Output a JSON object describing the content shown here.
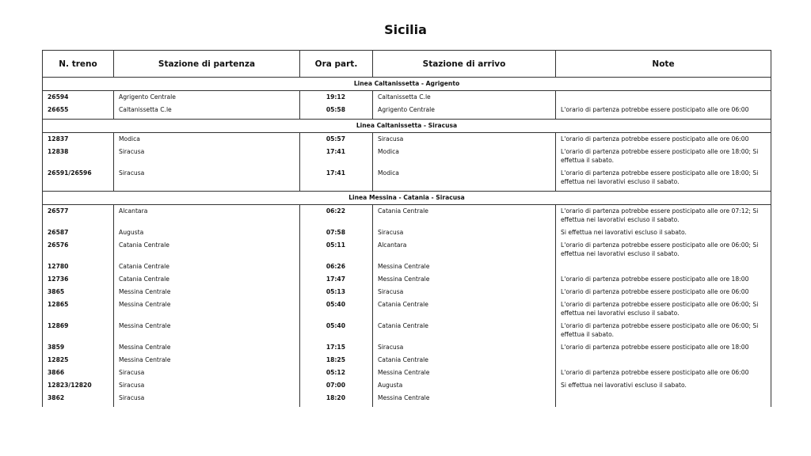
{
  "title": "Sicilia",
  "columns": [
    "N. treno",
    "Stazione di partenza",
    "Ora part.",
    "Stazione di arrivo",
    "Note"
  ],
  "sections": [
    {
      "name": "Linea Caltanissetta - Agrigento",
      "rows": [
        [
          "26594",
          "Agrigento Centrale",
          "19:12",
          "Caltanissetta C.le",
          ""
        ],
        [
          "26655",
          "Caltanissetta C.le",
          "05:58",
          "Agrigento Centrale",
          "L'orario di partenza potrebbe essere posticipato alle ore 06:00"
        ]
      ]
    },
    {
      "name": "Linea Caltanissetta - Siracusa",
      "rows": [
        [
          "12837",
          "Modica",
          "05:57",
          "Siracusa",
          "L'orario di partenza potrebbe essere posticipato alle ore 06:00"
        ],
        [
          "12838",
          "Siracusa",
          "17:41",
          "Modica",
          "L'orario di partenza potrebbe essere posticipato alle ore 18:00; Si effettua il sabato."
        ],
        [
          "26591/26596",
          "Siracusa",
          "17:41",
          "Modica",
          "L'orario di partenza potrebbe essere posticipato alle ore 18:00; Si effettua nei lavorativi escluso il sabato."
        ]
      ]
    },
    {
      "name": "Linea Messina - Catania - Siracusa",
      "rows": [
        [
          "26577",
          "Alcantara",
          "06:22",
          "Catania Centrale",
          "L'orario di partenza potrebbe essere posticipato alle ore 07:12; Si effettua nei lavorativi escluso il sabato."
        ],
        [
          "26587",
          "Augusta",
          "07:58",
          "Siracusa",
          "Si effettua nei lavorativi escluso il sabato."
        ],
        [
          "26576",
          "Catania Centrale",
          "05:11",
          "Alcantara",
          "L'orario di partenza potrebbe essere posticipato alle ore 06:00; Si effettua nei lavorativi escluso il sabato."
        ],
        [
          "12780",
          "Catania Centrale",
          "06:26",
          "Messina Centrale",
          ""
        ],
        [
          "12736",
          "Catania Centrale",
          "17:47",
          "Messina Centrale",
          "L'orario di partenza potrebbe essere posticipato alle ore 18:00"
        ],
        [
          "3865",
          "Messina Centrale",
          "05:13",
          "Siracusa",
          "L'orario di partenza potrebbe essere posticipato alle ore 06:00"
        ],
        [
          "12865",
          "Messina Centrale",
          "05:40",
          "Catania Centrale",
          "L'orario di partenza potrebbe essere posticipato alle ore 06:00; Si effettua nei lavorativi escluso il sabato."
        ],
        [
          "12869",
          "Messina Centrale",
          "05:40",
          "Catania Centrale",
          "L'orario di partenza potrebbe essere posticipato alle ore 06:00; Si effettua il sabato."
        ],
        [
          "3859",
          "Messina Centrale",
          "17:15",
          "Siracusa",
          "L'orario di partenza potrebbe essere posticipato alle ore 18:00"
        ],
        [
          "12825",
          "Messina Centrale",
          "18:25",
          "Catania Centrale",
          ""
        ],
        [
          "3866",
          "Siracusa",
          "05:12",
          "Messina Centrale",
          "L'orario di partenza potrebbe essere posticipato alle ore 06:00"
        ],
        [
          "12823/12820",
          "Siracusa",
          "07:00",
          "Augusta",
          "Si effettua nei lavorativi escluso il sabato."
        ],
        [
          "3862",
          "Siracusa",
          "18:20",
          "Messina Centrale",
          ""
        ]
      ]
    }
  ]
}
